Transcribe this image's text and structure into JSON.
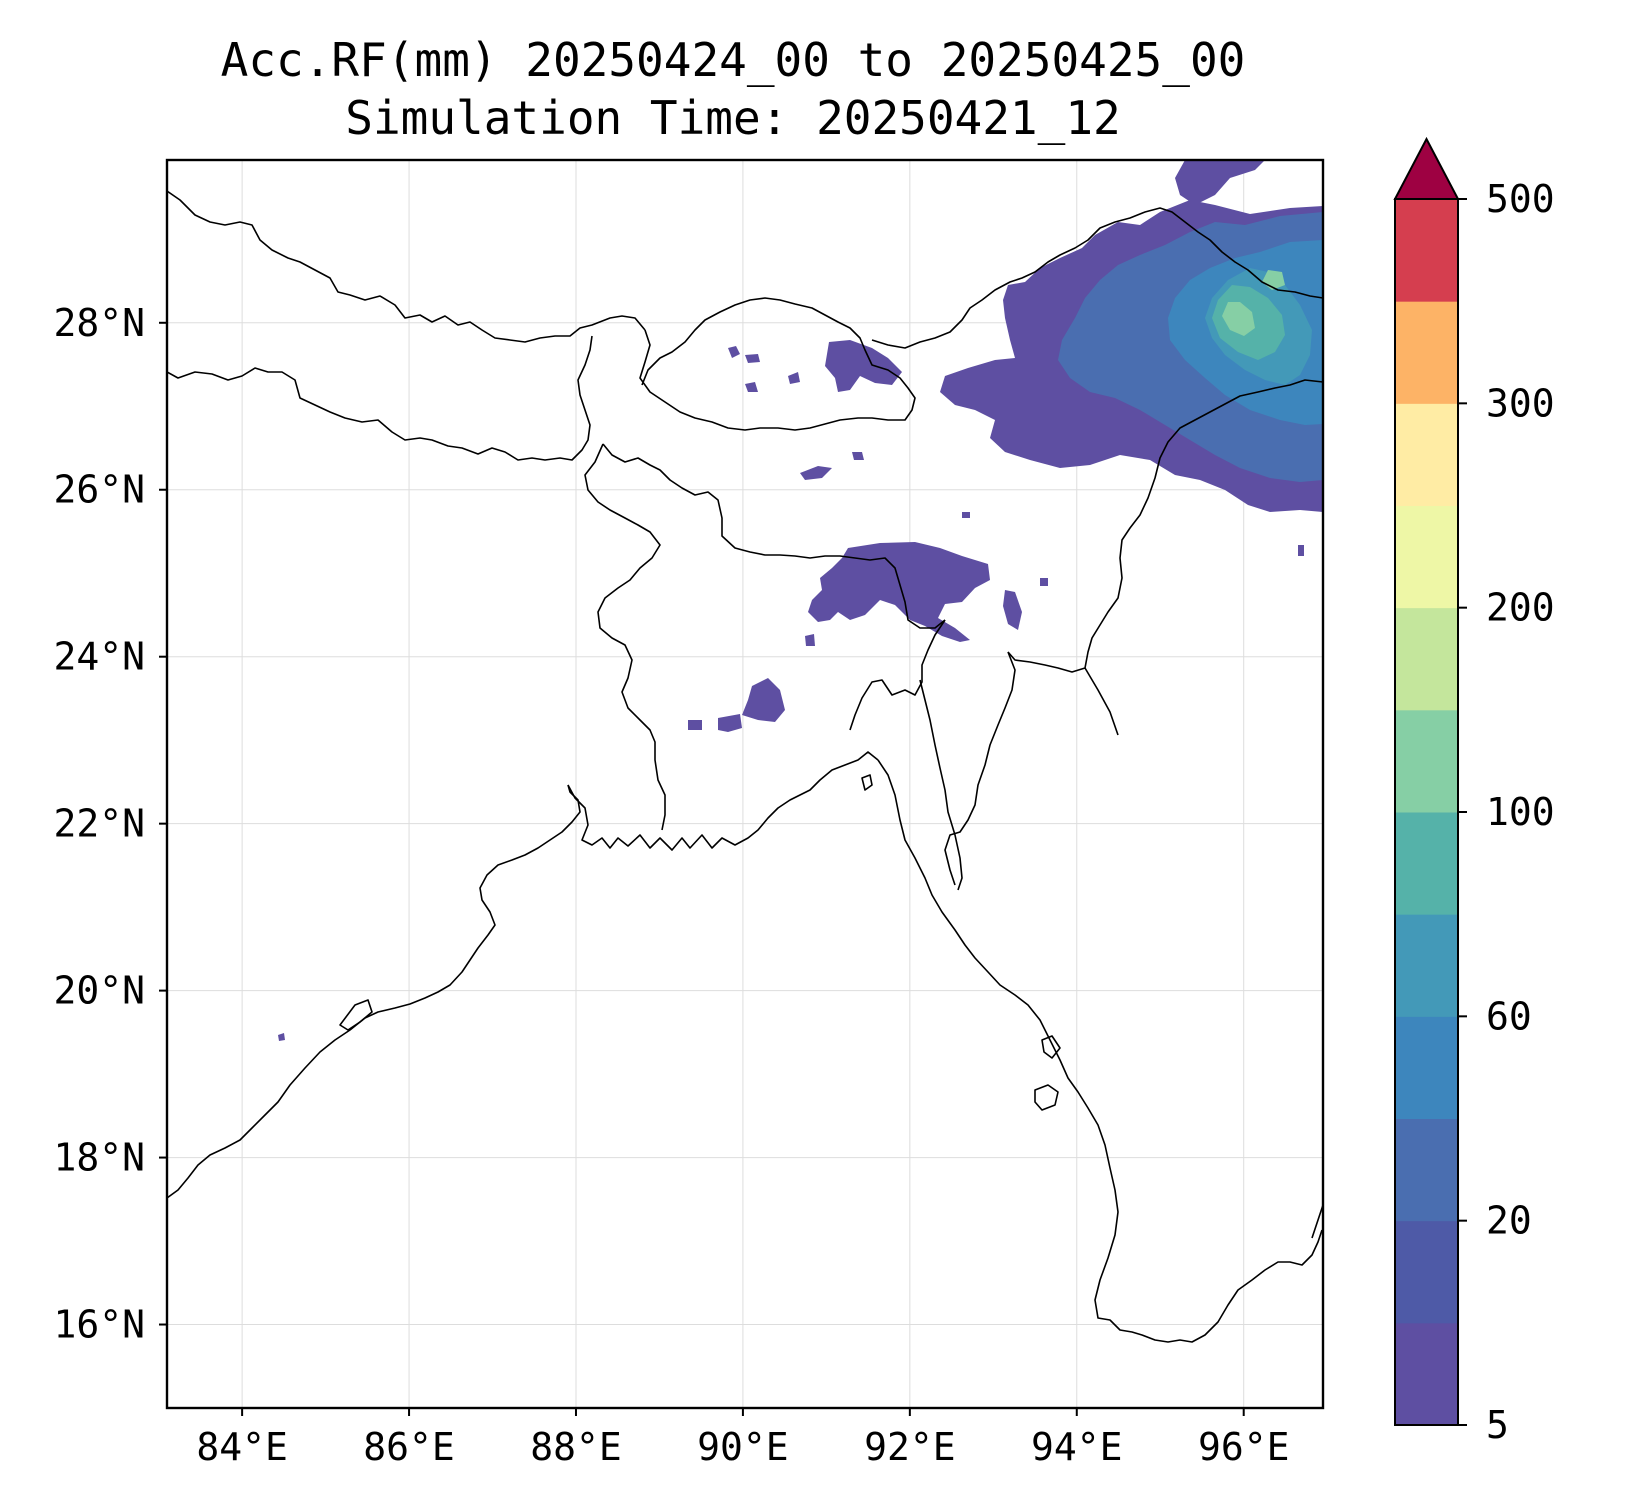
{
  "title": {
    "line1": "Acc.RF(mm) 20250424_00 to 20250425_00",
    "line2": "Simulation Time: 20250421_12"
  },
  "map": {
    "lon_range": [
      83.1,
      96.95
    ],
    "lat_range": [
      15.0,
      29.95
    ],
    "lon_ticks": [
      {
        "value": 84,
        "label": "84°E"
      },
      {
        "value": 86,
        "label": "86°E"
      },
      {
        "value": 88,
        "label": "88°E"
      },
      {
        "value": 90,
        "label": "90°E"
      },
      {
        "value": 92,
        "label": "92°E"
      },
      {
        "value": 94,
        "label": "94°E"
      },
      {
        "value": 96,
        "label": "96°E"
      }
    ],
    "lat_ticks": [
      {
        "value": 16,
        "label": "16°N"
      },
      {
        "value": 18,
        "label": "18°N"
      },
      {
        "value": 20,
        "label": "20°N"
      },
      {
        "value": 22,
        "label": "22°N"
      },
      {
        "value": 24,
        "label": "24°N"
      },
      {
        "value": 26,
        "label": "26°N"
      },
      {
        "value": 28,
        "label": "28°N"
      }
    ],
    "grid": true,
    "colors": {
      "land_outline": "#000000",
      "gridline": "#dddddd"
    }
  },
  "colorbar": {
    "levels": [
      5,
      10,
      20,
      40,
      60,
      80,
      100,
      150,
      200,
      250,
      300,
      400,
      500
    ],
    "colors": [
      "#5e4fa2",
      "#4e5aa7",
      "#4a6eb0",
      "#3d86bd",
      "#4399b8",
      "#55b2a9",
      "#86cfa5",
      "#c4e69c",
      "#eef7a6",
      "#ffeca4",
      "#fdb366",
      "#d53e4f"
    ],
    "extend_color": "#9e0142",
    "ticks": [
      {
        "value": 5,
        "label": "5"
      },
      {
        "value": 20,
        "label": "20"
      },
      {
        "value": 60,
        "label": "60"
      },
      {
        "value": 100,
        "label": "100"
      },
      {
        "value": 200,
        "label": "200"
      },
      {
        "value": 300,
        "label": "300"
      },
      {
        "value": 500,
        "label": "500"
      }
    ]
  }
}
